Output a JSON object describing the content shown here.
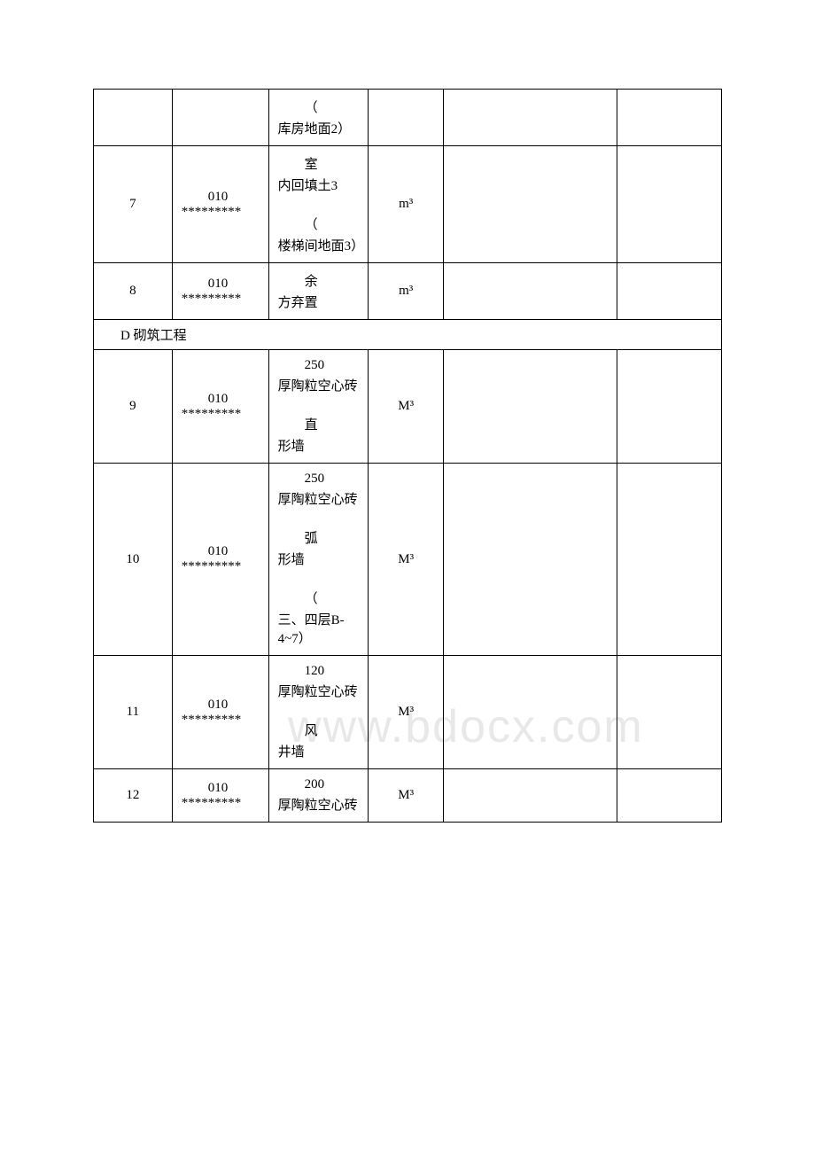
{
  "watermark": "www.bdocx.com",
  "rows": [
    {
      "num": "",
      "code": "",
      "desc_parts": [
        {
          "text": "（",
          "indent": true
        },
        {
          "text": "库房地面2）",
          "indent": false
        }
      ],
      "unit": ""
    },
    {
      "num": "7",
      "code_prefix": "010",
      "code_suffix": "*********",
      "desc_parts": [
        {
          "text": "室",
          "indent": true
        },
        {
          "text": "内回填土3",
          "indent": false
        },
        {
          "text": "",
          "indent": false
        },
        {
          "text": "（",
          "indent": true
        },
        {
          "text": "楼梯间地面3）",
          "indent": false
        }
      ],
      "unit": "m³"
    },
    {
      "num": "8",
      "code_prefix": "010",
      "code_suffix": "*********",
      "desc_parts": [
        {
          "text": "余",
          "indent": true
        },
        {
          "text": "方弃置",
          "indent": false
        }
      ],
      "unit": "m³"
    }
  ],
  "section_d": "D 砌筑工程",
  "rows_d": [
    {
      "num": "9",
      "code_prefix": "010",
      "code_suffix": "*********",
      "desc_parts": [
        {
          "text": "250",
          "indent": true
        },
        {
          "text": "厚陶粒空心砖",
          "indent": false
        },
        {
          "text": "",
          "indent": false
        },
        {
          "text": "直",
          "indent": true
        },
        {
          "text": "形墙",
          "indent": false
        }
      ],
      "unit": "M³"
    },
    {
      "num": "10",
      "code_prefix": "010",
      "code_suffix": "*********",
      "desc_parts": [
        {
          "text": "250",
          "indent": true
        },
        {
          "text": "厚陶粒空心砖",
          "indent": false
        },
        {
          "text": "",
          "indent": false
        },
        {
          "text": "弧",
          "indent": true
        },
        {
          "text": "形墙",
          "indent": false
        },
        {
          "text": "",
          "indent": false
        },
        {
          "text": "（",
          "indent": true
        },
        {
          "text": "三、四层B-4~7）",
          "indent": false
        }
      ],
      "unit": "M³"
    },
    {
      "num": "11",
      "code_prefix": "010",
      "code_suffix": "*********",
      "desc_parts": [
        {
          "text": "120",
          "indent": true
        },
        {
          "text": "厚陶粒空心砖",
          "indent": false
        },
        {
          "text": "",
          "indent": false
        },
        {
          "text": "风",
          "indent": true
        },
        {
          "text": "井墙",
          "indent": false
        }
      ],
      "unit": "M³"
    },
    {
      "num": "12",
      "code_prefix": "010",
      "code_suffix": "*********",
      "desc_parts": [
        {
          "text": "200",
          "indent": true
        },
        {
          "text": "厚陶粒空心砖",
          "indent": false
        }
      ],
      "unit": "M³"
    }
  ]
}
